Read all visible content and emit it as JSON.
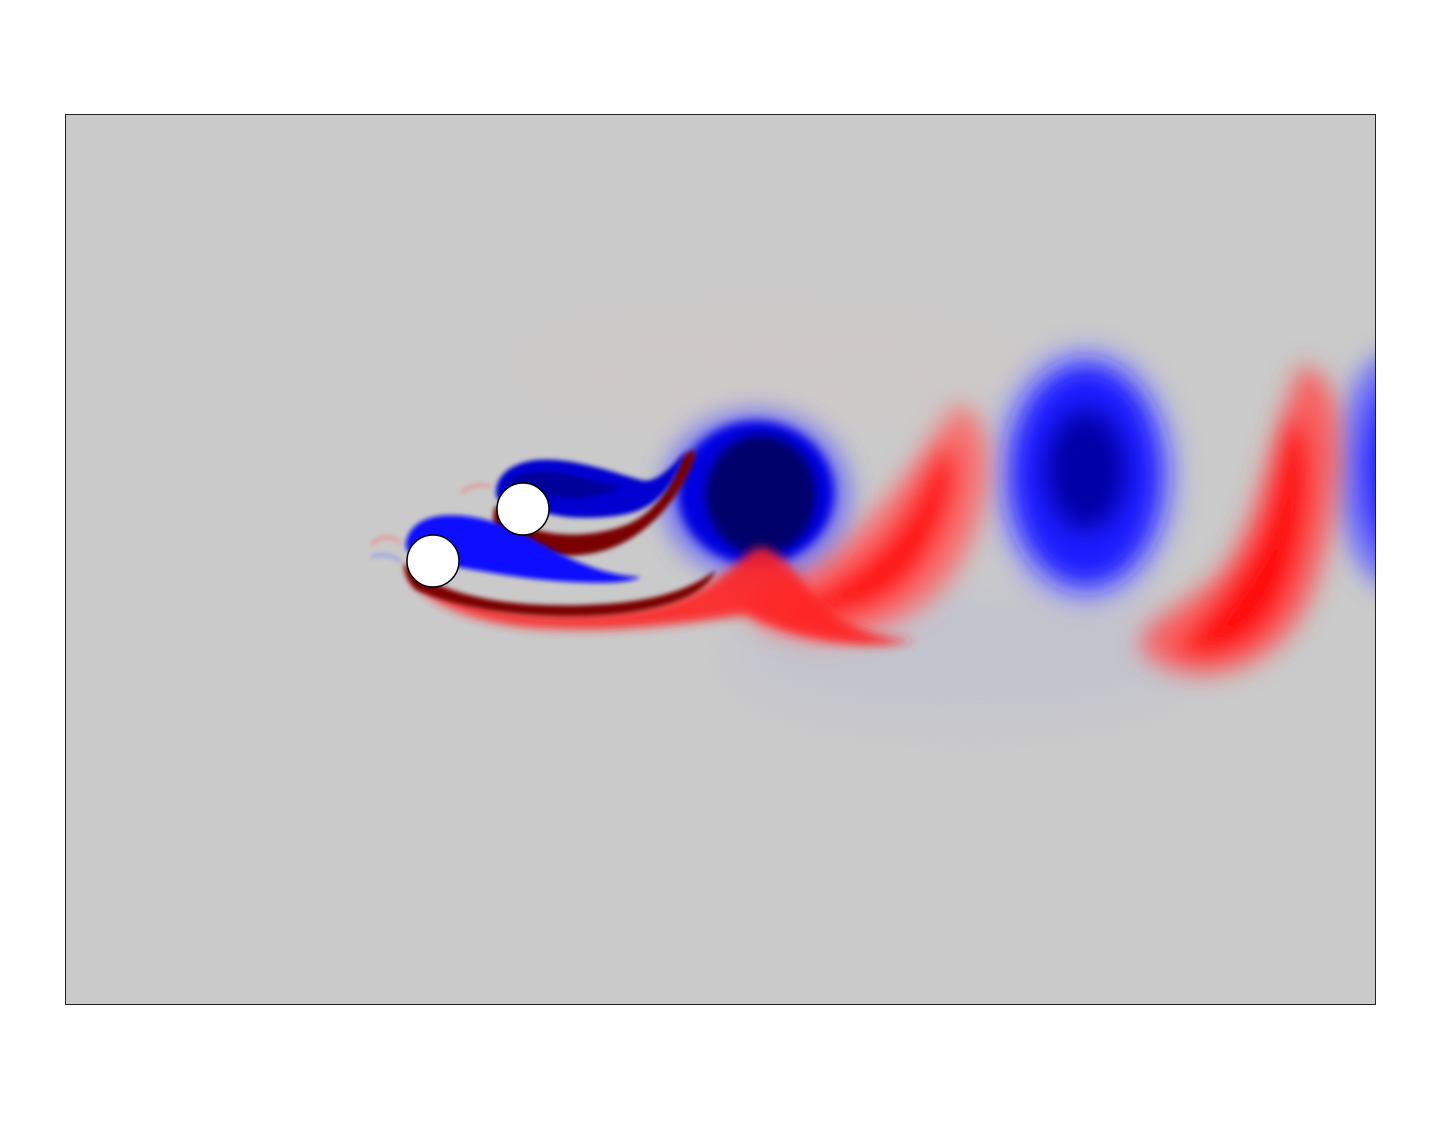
{
  "figure": {
    "colors": {
      "background": "#cacaca",
      "positive_strong": "#7a0000",
      "positive": "#ff1010",
      "negative_strong": "#00006a",
      "negative": "#0a0aff",
      "cylinder_fill": "#ffffff",
      "cylinder_stroke": "#000000"
    },
    "cylinders": [
      {
        "name": "upper-cylinder"
      },
      {
        "name": "lower-cylinder"
      }
    ]
  }
}
